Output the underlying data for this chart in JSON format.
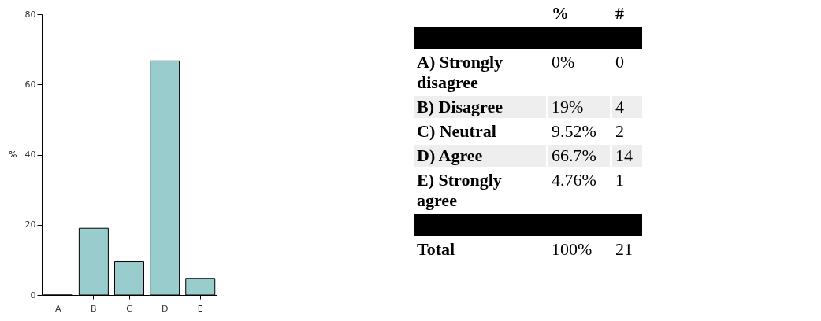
{
  "chart_data": {
    "type": "bar",
    "ylabel": "%",
    "categories": [
      "A",
      "B",
      "C",
      "D",
      "E"
    ],
    "values": [
      0,
      19,
      9.52,
      66.7,
      4.76
    ],
    "color": "#99cccc",
    "ylim": [
      0,
      80
    ],
    "yticks": [
      0,
      {
        "value": 10,
        "label": null
      },
      20,
      {
        "value": 30,
        "label": null
      },
      40,
      {
        "value": 50,
        "label": null
      },
      60,
      {
        "value": 70,
        "label": null
      },
      80
    ],
    "grid": false,
    "legend": false,
    "annotations": [
      "%",
      "#",
      "A) Strongly disagree",
      "B) Disagree",
      "C) Neutral",
      "D) Agree",
      "E) Strongly agree",
      "0%",
      "19%",
      "9.52%",
      "66.7%",
      "4.76%",
      "0",
      "4",
      "2",
      "14",
      "1",
      "Total",
      "100%",
      "21"
    ]
  }
}
